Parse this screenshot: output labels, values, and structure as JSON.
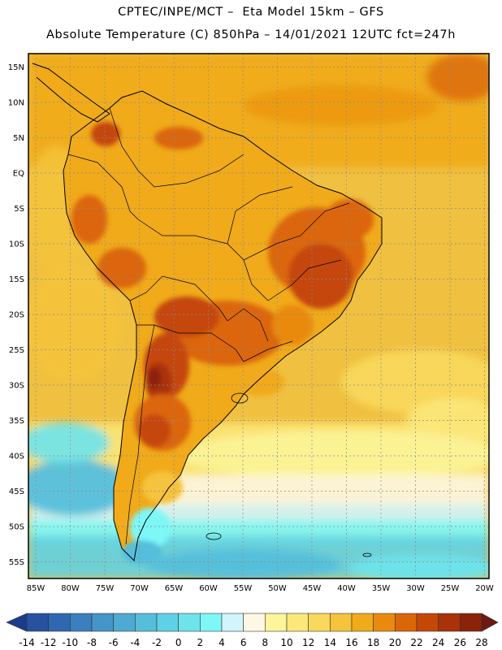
{
  "header": {
    "line1": "CPTEC/INPE/MCT –  Eta Model 15km – GFS",
    "line2": "Absolute Temperature (C) 850hPa – 14/01/2021 12UTC fct=247h"
  },
  "map": {
    "lat_labels": [
      "15N",
      "10N",
      "5N",
      "EQ",
      "5S",
      "10S",
      "15S",
      "20S",
      "25S",
      "30S",
      "35S",
      "40S",
      "45S",
      "50S",
      "55S"
    ],
    "lon_labels": [
      "85W",
      "80W",
      "75W",
      "70W",
      "65W",
      "60W",
      "55W",
      "50W",
      "45W",
      "40W",
      "35W",
      "30W",
      "25W",
      "20W"
    ]
  },
  "colorbar": {
    "labels": [
      "-14",
      "-12",
      "-10",
      "-8",
      "-6",
      "-4",
      "-2",
      "0",
      "2",
      "4",
      "6",
      "8",
      "10",
      "12",
      "14",
      "16",
      "18",
      "20",
      "22",
      "24",
      "26",
      "28"
    ],
    "colors": [
      "#1d3b8c",
      "#26529f",
      "#2f68b0",
      "#3a7fbe",
      "#4596c8",
      "#4eaad2",
      "#55bedb",
      "#5fd1e4",
      "#6ee3ec",
      "#7ef7f7",
      "#d2f4fb",
      "#fdf7e4",
      "#fcf59b",
      "#fce87a",
      "#f8d95c",
      "#f5c33c",
      "#f0aa1a",
      "#ea8a0c",
      "#db6607",
      "#c54708",
      "#a93208",
      "#8b2309",
      "#6d1810"
    ]
  },
  "colors": {
    "ocean_base": "#f0c040",
    "land_base": "#f0a030",
    "frame": "#000000"
  }
}
